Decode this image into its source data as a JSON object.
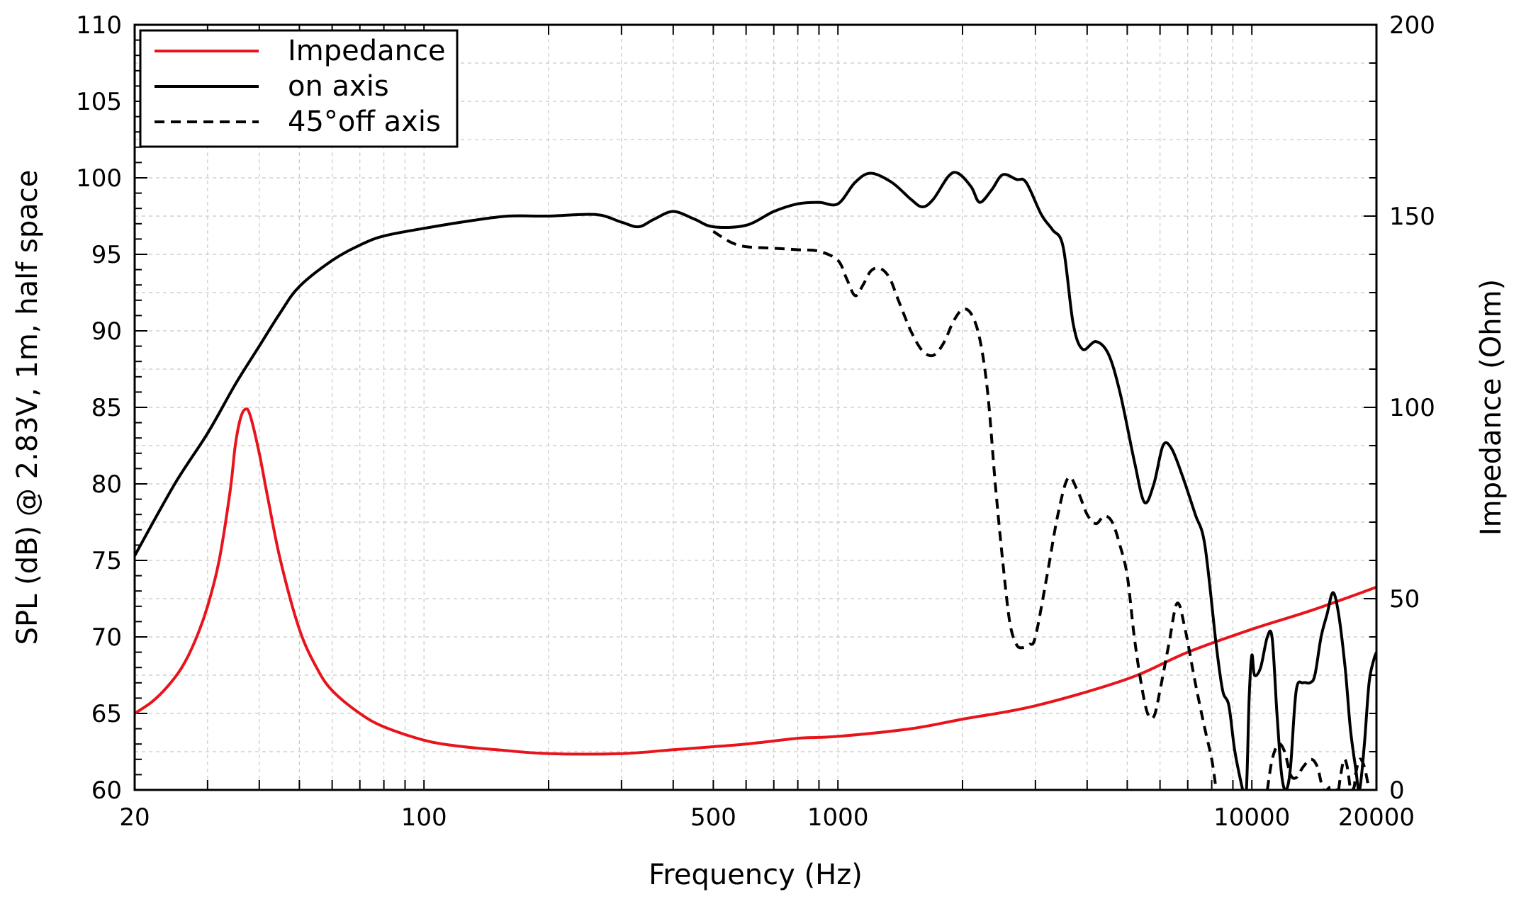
{
  "chart_data": {
    "type": "line",
    "xlabel": "Frequency (Hz)",
    "ylabel": "SPL (dB) @ 2.83V, 1m, half space",
    "y2label": "Impedance (Ohm)",
    "x_scale": "log",
    "xlim": [
      20,
      20000
    ],
    "ylim": [
      60,
      110
    ],
    "y2lim": [
      0,
      200
    ],
    "x_ticks": [
      20,
      100,
      500,
      1000,
      10000,
      20000
    ],
    "x_tick_labels": [
      "20",
      "100",
      "500",
      "1000",
      "10000",
      "20000"
    ],
    "y_ticks": [
      60,
      65,
      70,
      75,
      80,
      85,
      90,
      95,
      100,
      105,
      110
    ],
    "y_tick_labels": [
      "60",
      "65",
      "70",
      "75",
      "80",
      "85",
      "90",
      "95",
      "100",
      "105",
      "110"
    ],
    "y2_ticks": [
      0,
      50,
      100,
      150,
      200
    ],
    "y2_tick_labels": [
      "0",
      "50",
      "100",
      "150",
      "200"
    ],
    "grid": true,
    "legend_position": "top-left",
    "series": [
      {
        "name": "Impedance",
        "axis": "right",
        "color": "#e8141b",
        "dash": "solid",
        "points": [
          [
            20,
            20
          ],
          [
            22,
            23
          ],
          [
            24,
            27
          ],
          [
            26,
            32
          ],
          [
            28,
            39
          ],
          [
            30,
            48
          ],
          [
            32,
            60
          ],
          [
            34,
            78
          ],
          [
            35,
            90
          ],
          [
            36,
            97
          ],
          [
            37,
            99.5
          ],
          [
            38,
            98
          ],
          [
            40,
            88
          ],
          [
            42,
            76
          ],
          [
            45,
            60
          ],
          [
            50,
            42
          ],
          [
            55,
            32
          ],
          [
            60,
            26
          ],
          [
            70,
            20
          ],
          [
            80,
            16.5
          ],
          [
            100,
            13
          ],
          [
            120,
            11.5
          ],
          [
            150,
            10.5
          ],
          [
            200,
            9.5
          ],
          [
            300,
            9.5
          ],
          [
            400,
            10.5
          ],
          [
            600,
            12
          ],
          [
            800,
            13.5
          ],
          [
            1000,
            14
          ],
          [
            1500,
            16
          ],
          [
            2000,
            18.5
          ],
          [
            3000,
            22
          ],
          [
            5000,
            29
          ],
          [
            7000,
            36
          ],
          [
            10000,
            42
          ],
          [
            14000,
            47
          ],
          [
            20000,
            53
          ]
        ]
      },
      {
        "name": "on axis",
        "axis": "left",
        "color": "#000000",
        "dash": "solid",
        "points": [
          [
            20,
            75.3
          ],
          [
            25,
            80
          ],
          [
            30,
            83.3
          ],
          [
            35,
            86.5
          ],
          [
            40,
            89
          ],
          [
            45,
            91.2
          ],
          [
            50,
            92.9
          ],
          [
            60,
            94.6
          ],
          [
            70,
            95.6
          ],
          [
            80,
            96.2
          ],
          [
            100,
            96.7
          ],
          [
            130,
            97.2
          ],
          [
            160,
            97.5
          ],
          [
            200,
            97.5
          ],
          [
            260,
            97.6
          ],
          [
            300,
            97.1
          ],
          [
            330,
            96.8
          ],
          [
            360,
            97.3
          ],
          [
            400,
            97.8
          ],
          [
            450,
            97.3
          ],
          [
            500,
            96.8
          ],
          [
            600,
            96.9
          ],
          [
            700,
            97.8
          ],
          [
            800,
            98.3
          ],
          [
            900,
            98.4
          ],
          [
            1000,
            98.3
          ],
          [
            1100,
            99.7
          ],
          [
            1200,
            100.3
          ],
          [
            1350,
            99.7
          ],
          [
            1500,
            98.6
          ],
          [
            1600,
            98.1
          ],
          [
            1700,
            98.6
          ],
          [
            1850,
            100.1
          ],
          [
            1950,
            100.3
          ],
          [
            2100,
            99.4
          ],
          [
            2200,
            98.4
          ],
          [
            2350,
            99.2
          ],
          [
            2500,
            100.2
          ],
          [
            2700,
            99.9
          ],
          [
            2850,
            99.7
          ],
          [
            3100,
            97.6
          ],
          [
            3300,
            96.6
          ],
          [
            3500,
            95.5
          ],
          [
            3700,
            90.5
          ],
          [
            3900,
            88.8
          ],
          [
            4200,
            89.3
          ],
          [
            4500,
            88.5
          ],
          [
            4800,
            86
          ],
          [
            5200,
            81.5
          ],
          [
            5500,
            78.8
          ],
          [
            5800,
            80
          ],
          [
            6100,
            82.5
          ],
          [
            6400,
            82.3
          ],
          [
            6800,
            80.5
          ],
          [
            7300,
            78
          ],
          [
            7700,
            76
          ],
          [
            8200,
            69.5
          ],
          [
            8500,
            66.5
          ],
          [
            8800,
            65.5
          ],
          [
            9100,
            62.5
          ],
          [
            9500,
            60
          ]
        ]
      },
      {
        "name": "on axis",
        "axis": "left",
        "color": "#000000",
        "dash": "solid",
        "points": [
          [
            9500,
            60
          ],
          [
            9700,
            60
          ],
          [
            9850,
            66
          ],
          [
            10000,
            68.8
          ],
          [
            10150,
            67.5
          ],
          [
            10500,
            68
          ],
          [
            10900,
            70
          ],
          [
            11200,
            69.9
          ],
          [
            11500,
            65
          ],
          [
            11800,
            61
          ],
          [
            12100,
            60
          ],
          [
            12400,
            61.5
          ],
          [
            12800,
            66.5
          ],
          [
            13300,
            67
          ],
          [
            13800,
            67
          ],
          [
            14200,
            67.5
          ],
          [
            14700,
            70
          ],
          [
            15200,
            71.5
          ],
          [
            15700,
            72.9
          ],
          [
            16200,
            71.5
          ],
          [
            16800,
            68
          ],
          [
            17300,
            64
          ],
          [
            17800,
            61.5
          ],
          [
            18200,
            60
          ],
          [
            18700,
            63
          ],
          [
            19200,
            67
          ],
          [
            19700,
            68.5
          ],
          [
            20000,
            69
          ]
        ]
      },
      {
        "name": "45°off axis",
        "axis": "left",
        "color": "#000000",
        "dash": "dashed",
        "points": [
          [
            500,
            96.5
          ],
          [
            550,
            95.8
          ],
          [
            600,
            95.5
          ],
          [
            700,
            95.4
          ],
          [
            800,
            95.3
          ],
          [
            900,
            95.2
          ],
          [
            1000,
            94.6
          ],
          [
            1050,
            93.4
          ],
          [
            1100,
            92.3
          ],
          [
            1150,
            93
          ],
          [
            1200,
            93.9
          ],
          [
            1260,
            94.1
          ],
          [
            1330,
            93.5
          ],
          [
            1400,
            92
          ],
          [
            1500,
            90
          ],
          [
            1600,
            88.7
          ],
          [
            1700,
            88.4
          ],
          [
            1800,
            89.2
          ],
          [
            1900,
            90.6
          ],
          [
            2000,
            91.4
          ],
          [
            2100,
            91.1
          ],
          [
            2200,
            89.5
          ],
          [
            2300,
            86
          ],
          [
            2400,
            80
          ],
          [
            2500,
            75
          ],
          [
            2600,
            71
          ],
          [
            2700,
            69.5
          ],
          [
            2800,
            69.3
          ],
          [
            2900,
            69.5
          ],
          [
            3000,
            70
          ],
          [
            3200,
            74
          ],
          [
            3400,
            78
          ],
          [
            3600,
            80.4
          ],
          [
            3800,
            79.5
          ],
          [
            4000,
            78
          ],
          [
            4200,
            77.4
          ],
          [
            4400,
            77.9
          ],
          [
            4600,
            77.5
          ],
          [
            4800,
            76
          ],
          [
            5000,
            74
          ],
          [
            5200,
            70
          ],
          [
            5400,
            67
          ],
          [
            5600,
            65
          ],
          [
            5800,
            64.8
          ],
          [
            6000,
            66.5
          ],
          [
            6300,
            69.5
          ],
          [
            6600,
            72.2
          ],
          [
            6900,
            70.5
          ],
          [
            7300,
            67
          ],
          [
            7700,
            64
          ],
          [
            8000,
            62
          ],
          [
            8200,
            60
          ]
        ]
      },
      {
        "name": "45°off axis",
        "axis": "left",
        "color": "#000000",
        "dash": "dashed",
        "points": [
          [
            10900,
            60
          ],
          [
            11200,
            62
          ],
          [
            11600,
            63
          ],
          [
            12000,
            62.5
          ],
          [
            12400,
            61
          ],
          [
            12800,
            60.8
          ],
          [
            13300,
            61.5
          ],
          [
            13900,
            62
          ],
          [
            14400,
            61.5
          ],
          [
            14900,
            60
          ],
          [
            15500,
            60.2
          ],
          [
            16000,
            60
          ],
          [
            17500,
            60
          ],
          [
            17800,
            61
          ],
          [
            18200,
            62
          ],
          [
            18700,
            61.5
          ],
          [
            19200,
            60
          ]
        ]
      },
      {
        "name": "45°off axis",
        "axis": "left",
        "color": "#000000",
        "dash": "dashed",
        "points": [
          [
            16200,
            60
          ],
          [
            16400,
            61
          ],
          [
            16700,
            62
          ],
          [
            17000,
            61.5
          ],
          [
            17300,
            60
          ]
        ]
      }
    ]
  }
}
